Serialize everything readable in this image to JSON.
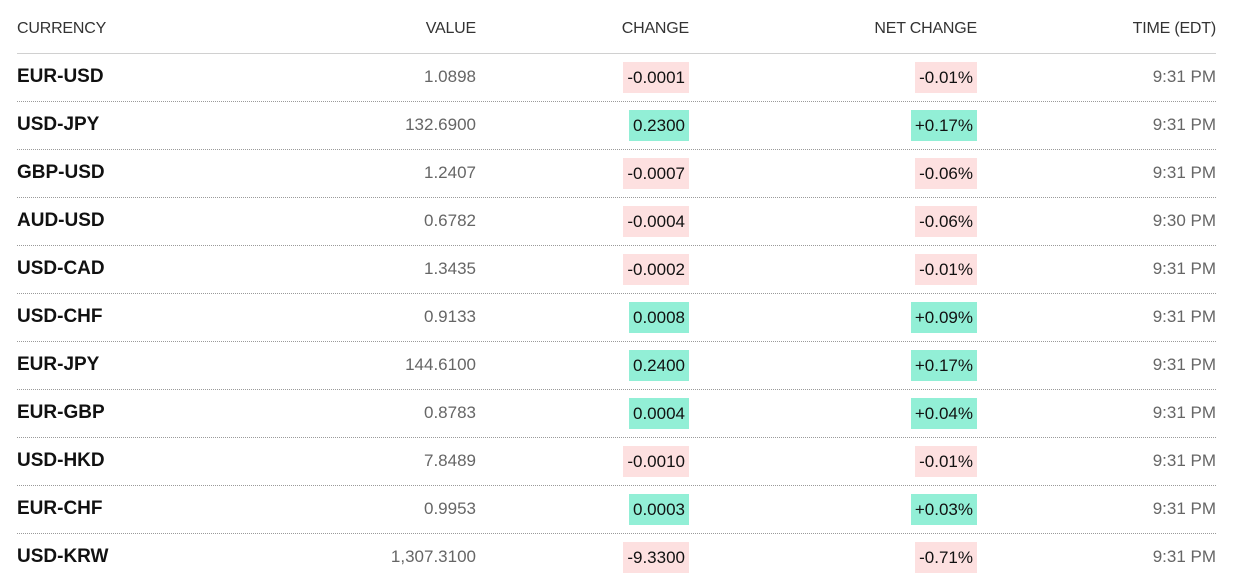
{
  "table": {
    "headers": [
      "CURRENCY",
      "VALUE",
      "CHANGE",
      "NET CHANGE",
      "TIME (EDT)"
    ],
    "rows": [
      [
        "EUR-USD",
        "1.0898",
        "-0.0001",
        "-0.01%",
        "9:31 PM"
      ],
      [
        "USD-JPY",
        "132.6900",
        "0.2300",
        "+0.17%",
        "9:31 PM"
      ],
      [
        "GBP-USD",
        "1.2407",
        "-0.0007",
        "-0.06%",
        "9:31 PM"
      ],
      [
        "AUD-USD",
        "0.6782",
        "-0.0004",
        "-0.06%",
        "9:30 PM"
      ],
      [
        "USD-CAD",
        "1.3435",
        "-0.0002",
        "-0.01%",
        "9:31 PM"
      ],
      [
        "USD-CHF",
        "0.9133",
        "0.0008",
        "+0.09%",
        "9:31 PM"
      ],
      [
        "EUR-JPY",
        "144.6100",
        "0.2400",
        "+0.17%",
        "9:31 PM"
      ],
      [
        "EUR-GBP",
        "0.8783",
        "0.0004",
        "+0.04%",
        "9:31 PM"
      ],
      [
        "USD-HKD",
        "7.8489",
        "-0.0010",
        "-0.01%",
        "9:31 PM"
      ],
      [
        "EUR-CHF",
        "0.9953",
        "0.0003",
        "+0.03%",
        "9:31 PM"
      ],
      [
        "USD-KRW",
        "1,307.3100",
        "-9.3300",
        "-0.71%",
        "9:31 PM"
      ]
    ]
  }
}
